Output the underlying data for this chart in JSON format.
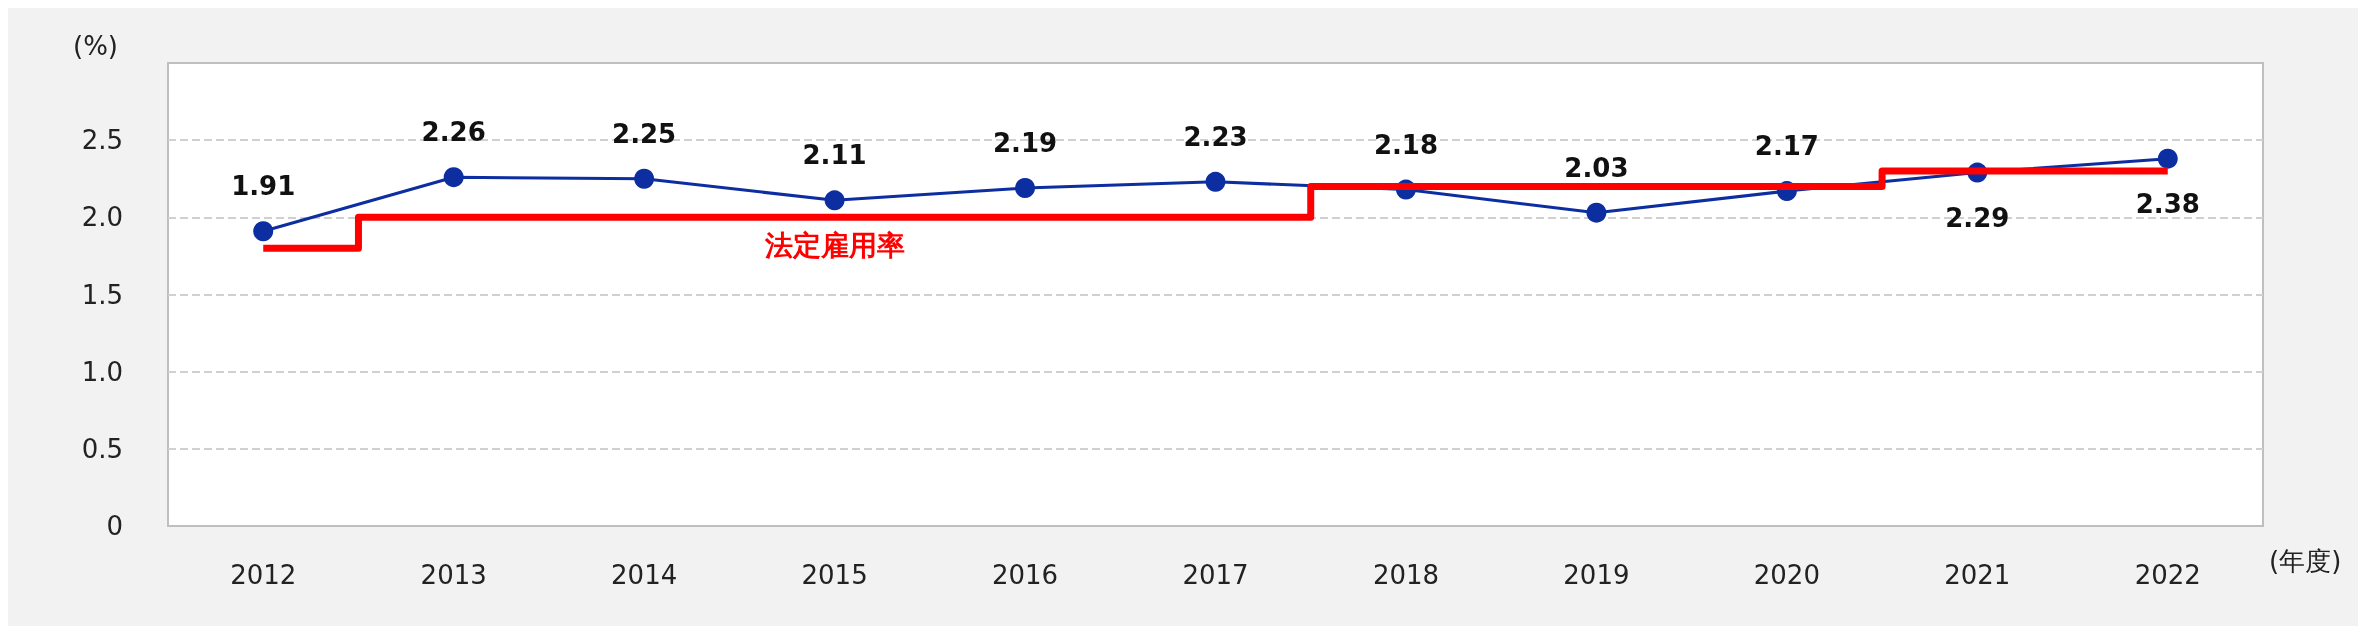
{
  "chart_data": {
    "type": "line",
    "ylabel": "(%)",
    "xlabel": "(年度)",
    "categories": [
      "2012",
      "2013",
      "2014",
      "2015",
      "2016",
      "2017",
      "2018",
      "2019",
      "2020",
      "2021",
      "2022"
    ],
    "series": [
      {
        "color": "#0d2ea0",
        "values": [
          1.91,
          2.26,
          2.25,
          2.11,
          2.19,
          2.23,
          2.18,
          2.03,
          2.17,
          2.29,
          2.38
        ],
        "marker": "circle",
        "data_labels": true
      },
      {
        "type": "step",
        "name": "法定雇用率",
        "color": "#ff0000",
        "values": [
          1.8,
          2.0,
          2.0,
          2.0,
          2.0,
          2.0,
          2.2,
          2.2,
          2.2,
          2.3,
          2.3
        ],
        "marker": "none"
      }
    ],
    "ylim": [
      0,
      3
    ],
    "yticks": [
      0,
      {
        "value": 0.5,
        "label": "0.5"
      },
      {
        "value": 1,
        "label": "1.0"
      },
      {
        "value": 1.5,
        "label": "1.5"
      },
      {
        "value": 2,
        "label": "2.0"
      },
      {
        "value": 2.5,
        "label": "2.5"
      }
    ],
    "grid": "y",
    "legend": false
  }
}
